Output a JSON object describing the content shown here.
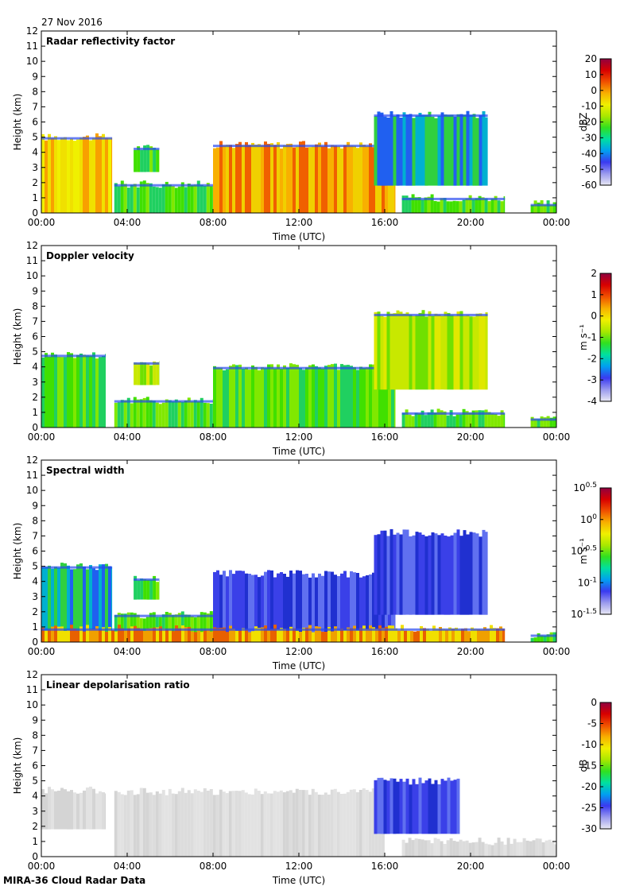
{
  "date": "27 Nov 2016",
  "footer": "MIRA-36 Cloud Radar Data",
  "chart_data": [
    {
      "type": "heatmap",
      "title": "Radar reflectivity factor",
      "xlabel": "Time (UTC)",
      "ylabel": "Height (km)",
      "x_ticks": [
        "00:00",
        "04:00",
        "08:00",
        "12:00",
        "16:00",
        "20:00",
        "00:00"
      ],
      "x_range_hours": [
        0,
        24
      ],
      "y_ticks": [
        "0",
        "1",
        "2",
        "3",
        "4",
        "5",
        "6",
        "7",
        "8",
        "9",
        "10",
        "11",
        "12"
      ],
      "ylim": [
        0,
        12
      ],
      "colorbar": {
        "label": "dBZ",
        "ticks": [
          "20",
          "10",
          "0",
          "-10",
          "-20",
          "-30",
          "-40",
          "-50",
          "-60"
        ],
        "range": [
          -60,
          20
        ],
        "scale": "rainbow"
      },
      "features": [
        {
          "t0": 0.0,
          "t1": 3.3,
          "base": 0.0,
          "top": 5.0,
          "core": "yellow-orange"
        },
        {
          "t0": 4.3,
          "t1": 5.5,
          "base": 2.7,
          "top": 4.3,
          "core": "green"
        },
        {
          "t0": 3.4,
          "t1": 8.0,
          "base": 0.0,
          "top": 1.9,
          "core": "green"
        },
        {
          "t0": 8.0,
          "t1": 16.5,
          "base": 0.0,
          "top": 4.5,
          "core": "orange-red"
        },
        {
          "t0": 15.5,
          "t1": 20.8,
          "base": 1.8,
          "top": 6.5,
          "core": "green-blue"
        },
        {
          "t0": 16.8,
          "t1": 21.6,
          "base": 0.0,
          "top": 1.0,
          "core": "green"
        },
        {
          "t0": 22.8,
          "t1": 24.0,
          "base": 0.0,
          "top": 0.6,
          "core": "green"
        }
      ]
    },
    {
      "type": "heatmap",
      "title": "Doppler velocity",
      "xlabel": "Time (UTC)",
      "ylabel": "Height (km)",
      "x_ticks": [
        "00:00",
        "04:00",
        "08:00",
        "12:00",
        "16:00",
        "20:00",
        "00:00"
      ],
      "x_range_hours": [
        0,
        24
      ],
      "y_ticks": [
        "0",
        "1",
        "2",
        "3",
        "4",
        "5",
        "6",
        "7",
        "8",
        "9",
        "10",
        "11",
        "12"
      ],
      "ylim": [
        0,
        12
      ],
      "colorbar": {
        "label": "m s⁻¹",
        "ticks": [
          "2",
          "1",
          "0",
          "-1",
          "-2",
          "-3",
          "-4"
        ],
        "range": [
          -4,
          2
        ],
        "scale": "rainbow"
      },
      "features": [
        {
          "t0": 0.0,
          "t1": 3.0,
          "base": 0.0,
          "top": 4.8,
          "core": "green"
        },
        {
          "t0": 4.3,
          "t1": 5.5,
          "base": 2.8,
          "top": 4.3,
          "core": "yellow-green"
        },
        {
          "t0": 3.4,
          "t1": 8.0,
          "base": 0.0,
          "top": 1.8,
          "core": "green"
        },
        {
          "t0": 8.0,
          "t1": 16.5,
          "base": 0.0,
          "top": 4.0,
          "core": "green"
        },
        {
          "t0": 15.5,
          "t1": 20.8,
          "base": 2.5,
          "top": 7.5,
          "core": "yellow-green"
        },
        {
          "t0": 16.8,
          "t1": 21.6,
          "base": 0.0,
          "top": 1.0,
          "core": "green"
        },
        {
          "t0": 22.8,
          "t1": 24.0,
          "base": 0.0,
          "top": 0.6,
          "core": "green"
        }
      ]
    },
    {
      "type": "heatmap",
      "title": "Spectral width",
      "xlabel": "Time (UTC)",
      "ylabel": "Height (km)",
      "x_ticks": [
        "00:00",
        "04:00",
        "08:00",
        "12:00",
        "16:00",
        "20:00",
        "00:00"
      ],
      "x_range_hours": [
        0,
        24
      ],
      "y_ticks": [
        "0",
        "1",
        "2",
        "3",
        "4",
        "5",
        "6",
        "7",
        "8",
        "9",
        "10",
        "11",
        "12"
      ],
      "ylim": [
        0,
        12
      ],
      "colorbar": {
        "label": "m s⁻¹",
        "ticks": [
          "10^0.5",
          "10^0",
          "10^-0.5",
          "10^-1",
          "10^-1.5"
        ],
        "range_log10": [
          -1.5,
          0.5
        ],
        "scale": "rainbow"
      },
      "features": [
        {
          "t0": 0.0,
          "t1": 3.3,
          "base": 0.0,
          "top": 5.0,
          "core": "green-blue"
        },
        {
          "t0": 4.3,
          "t1": 5.5,
          "base": 2.8,
          "top": 4.2,
          "core": "green"
        },
        {
          "t0": 3.4,
          "t1": 8.0,
          "base": 0.0,
          "top": 1.8,
          "core": "green"
        },
        {
          "t0": 8.0,
          "t1": 16.5,
          "base": 0.0,
          "top": 4.5,
          "core": "blue"
        },
        {
          "t0": 15.5,
          "t1": 20.8,
          "base": 1.8,
          "top": 7.2,
          "core": "blue"
        },
        {
          "t0": 0.0,
          "t1": 21.6,
          "base": 0.0,
          "top": 0.9,
          "core": "orange-yellow"
        },
        {
          "t0": 22.8,
          "t1": 24.0,
          "base": 0.0,
          "top": 0.5,
          "core": "green"
        }
      ]
    },
    {
      "type": "heatmap",
      "title": "Linear depolarisation ratio",
      "xlabel": "Time (UTC)",
      "ylabel": "Height (km)",
      "x_ticks": [
        "00:00",
        "04:00",
        "08:00",
        "12:00",
        "16:00",
        "20:00",
        "00:00"
      ],
      "x_range_hours": [
        0,
        24
      ],
      "y_ticks": [
        "0",
        "1",
        "2",
        "3",
        "4",
        "5",
        "6",
        "7",
        "8",
        "9",
        "10",
        "11",
        "12"
      ],
      "ylim": [
        0,
        12
      ],
      "colorbar": {
        "label": "dB",
        "ticks": [
          "0",
          "-5",
          "-10",
          "-15",
          "-20",
          "-25",
          "-30"
        ],
        "range": [
          -30,
          0
        ],
        "scale": "rainbow"
      },
      "features": [
        {
          "t0": 0.0,
          "t1": 3.0,
          "base": 1.8,
          "top": 4.4,
          "core": "light-gray"
        },
        {
          "t0": 3.4,
          "t1": 16.0,
          "base": 0.0,
          "top": 4.3,
          "core": "light-gray"
        },
        {
          "t0": 15.5,
          "t1": 19.5,
          "base": 1.5,
          "top": 5.0,
          "core": "blue"
        },
        {
          "t0": 16.8,
          "t1": 24.0,
          "base": 0.0,
          "top": 1.0,
          "core": "light-gray"
        }
      ]
    }
  ]
}
